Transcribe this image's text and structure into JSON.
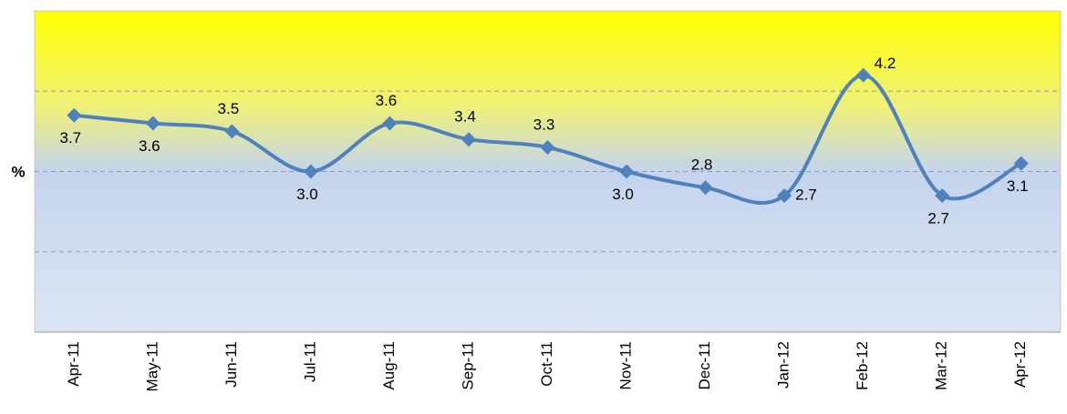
{
  "chart_data": {
    "type": "line",
    "y_label": "%",
    "categories": [
      "Apr-11",
      "May-11",
      "Jun-11",
      "Jul-11",
      "Aug-11",
      "Sep-11",
      "Oct-11",
      "Nov-11",
      "Dec-11",
      "Jan-12",
      "Feb-12",
      "Mar-12",
      "Apr-12"
    ],
    "values": [
      3.7,
      3.6,
      3.5,
      3.0,
      3.6,
      3.4,
      3.3,
      3.0,
      2.8,
      2.7,
      4.2,
      2.7,
      3.1
    ],
    "value_labels": [
      "3.7",
      "3.6",
      "3.5",
      "3.0",
      "3.6",
      "3.4",
      "3.3",
      "3.0",
      "2.8",
      "2.7",
      "4.2",
      "2.7",
      "3.1"
    ],
    "color": "#4f81bd",
    "ylim": [
      1,
      5
    ],
    "yticks": [
      1,
      2,
      3,
      4,
      5
    ],
    "grid": true
  }
}
